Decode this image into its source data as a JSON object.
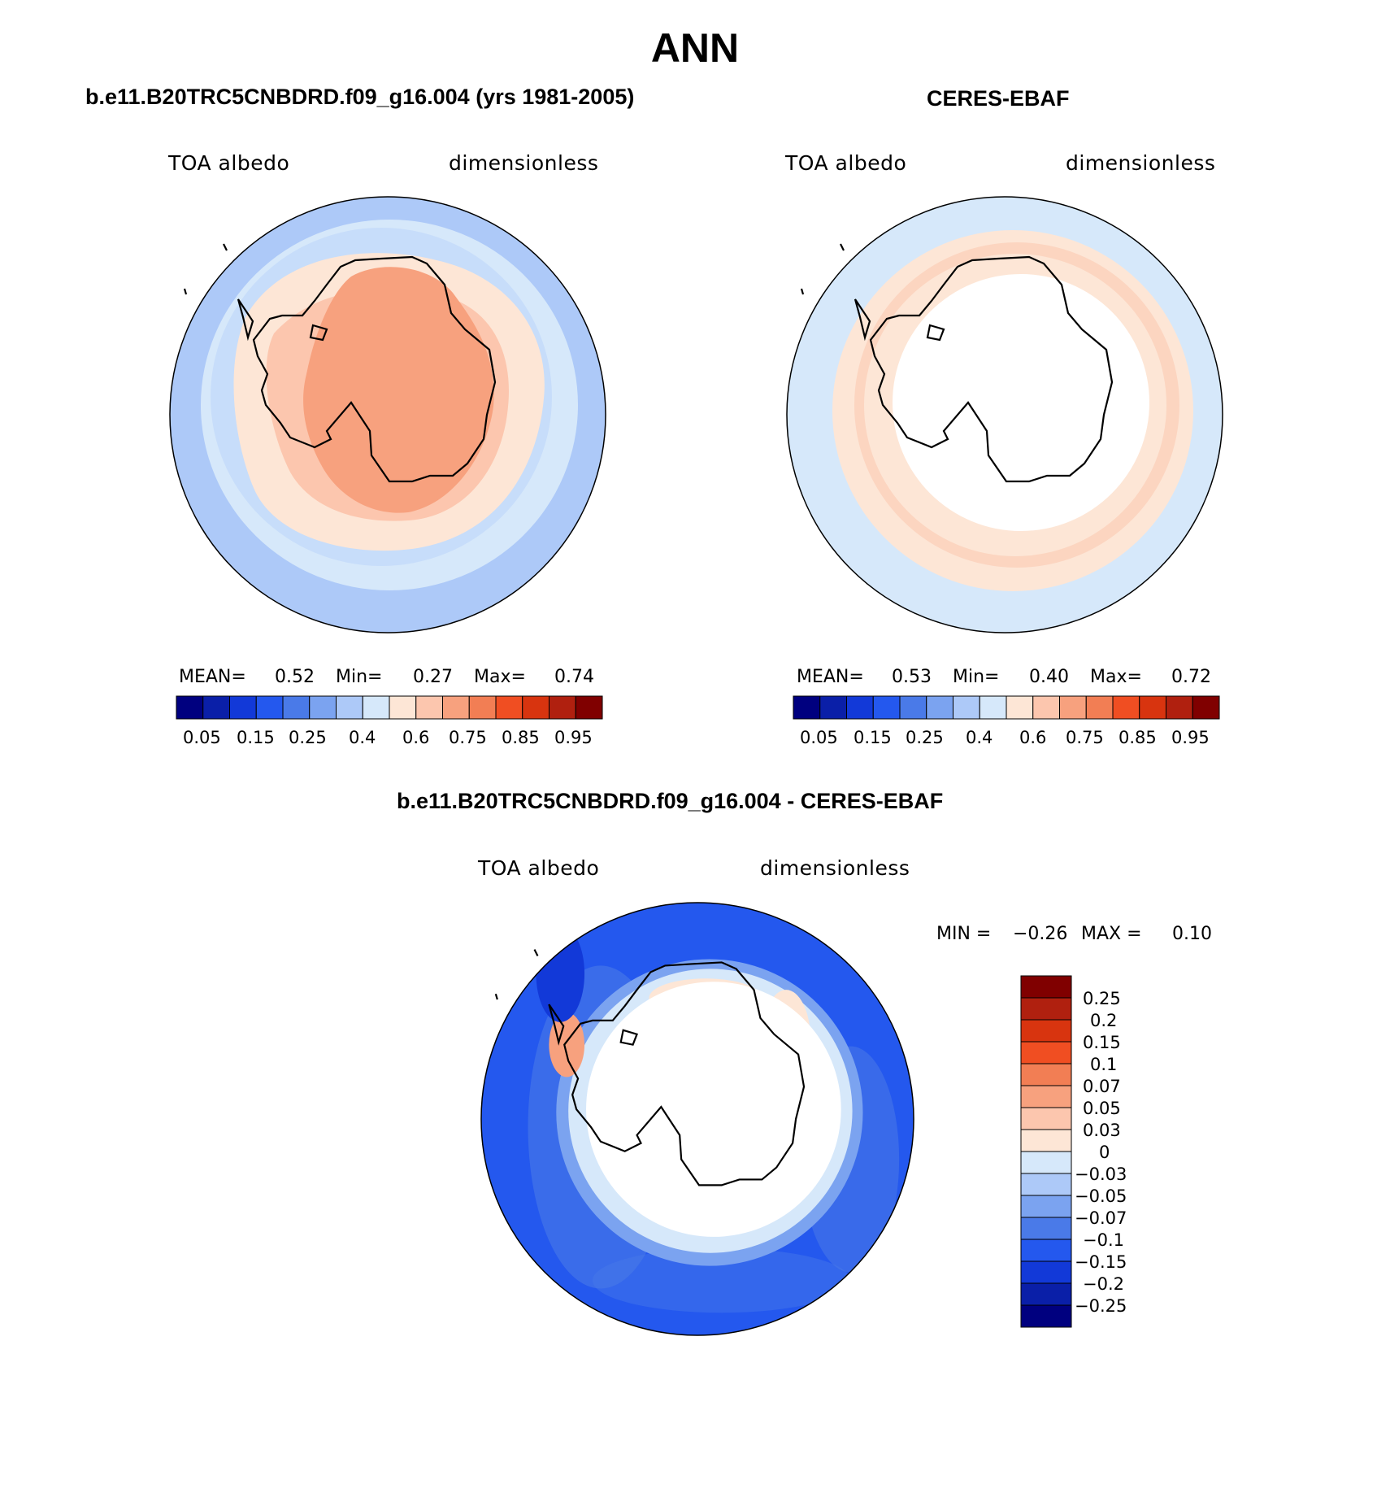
{
  "title": "ANN",
  "panels": [
    {
      "title": "b.e11.B20TRC5CNBDRD.f09_g16.004 (yrs 1981-2005)",
      "left_label": "TOA albedo",
      "right_label": "dimensionless",
      "stats": {
        "mean_label": "MEAN=",
        "mean": "0.52",
        "min_label": "Min=",
        "min": "0.27",
        "max_label": "Max=",
        "max": "0.74"
      },
      "colorbar_labels": [
        "0.05",
        "0.15",
        "0.25",
        "0.4",
        "0.6",
        "0.75",
        "0.85",
        "0.95"
      ]
    },
    {
      "title": "CERES-EBAF",
      "left_label": "TOA albedo",
      "right_label": "dimensionless",
      "stats": {
        "mean_label": "MEAN=",
        "mean": "0.53",
        "min_label": "Min=",
        "min": "0.40",
        "max_label": "Max=",
        "max": "0.72"
      },
      "colorbar_labels": [
        "0.05",
        "0.15",
        "0.25",
        "0.4",
        "0.6",
        "0.75",
        "0.85",
        "0.95"
      ]
    },
    {
      "title": "b.e11.B20TRC5CNBDRD.f09_g16.004 - CERES-EBAF",
      "left_label": "TOA albedo",
      "right_label": "dimensionless",
      "stats": {
        "min_label": "MIN =",
        "min": "−0.26",
        "max_label": "MAX =",
        "max": "0.10"
      },
      "colorbar_labels": [
        "0.25",
        "0.2",
        "0.15",
        "0.1",
        "0.07",
        "0.05",
        "0.03",
        "0",
        "−0.03",
        "−0.05",
        "−0.07",
        "−0.1",
        "−0.15",
        "−0.2",
        "−0.25"
      ]
    }
  ],
  "colors": {
    "albedo_scale": [
      "#00007f",
      "#0a1fa8",
      "#1239d8",
      "#2458ee",
      "#4a7ae8",
      "#7ba3f0",
      "#adc9f8",
      "#d6e8fa",
      "#fde6d6",
      "#fcc6ae",
      "#f7a17e",
      "#f27e54",
      "#f04e22",
      "#d8340f",
      "#b0200f",
      "#800000"
    ],
    "diff_scale": [
      "#800000",
      "#b0200f",
      "#d8340f",
      "#f04e22",
      "#f27e54",
      "#f7a17e",
      "#fcc6ae",
      "#fde6d6",
      "#d6e8fa",
      "#adc9f8",
      "#7ba3f0",
      "#4a7ae8",
      "#2458ee",
      "#1239d8",
      "#0a1fa8",
      "#00007f"
    ]
  }
}
